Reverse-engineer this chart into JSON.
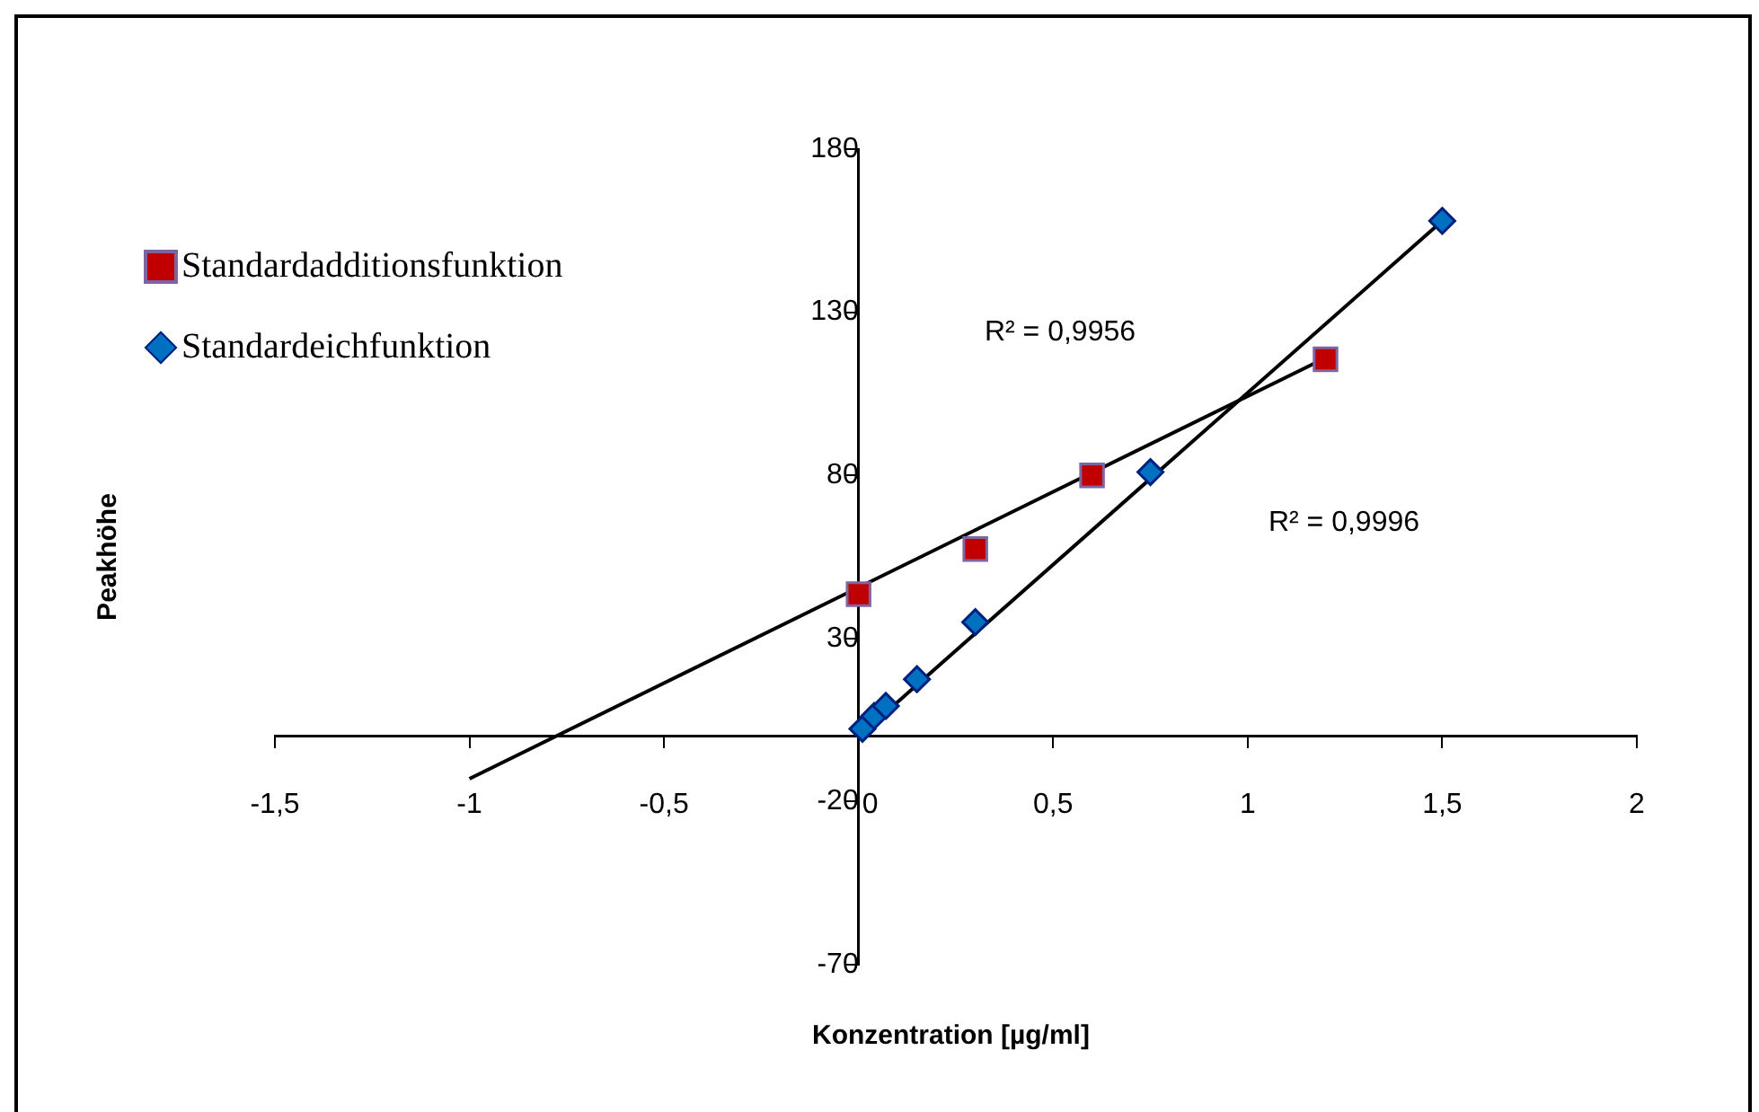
{
  "chart_data": {
    "type": "scatter",
    "xlabel": "Konzentration [µg/ml]",
    "ylabel": "Peakhöhe",
    "xlim": [
      -1.5,
      2
    ],
    "xticks": [
      {
        "value": -1.5,
        "label": "-1,5"
      },
      -1,
      {
        "value": -0.5,
        "label": "-0,5"
      },
      0,
      {
        "value": 0.5,
        "label": "0,5"
      },
      1,
      {
        "value": 1.5,
        "label": "1,5"
      },
      2
    ],
    "ylim": [
      -70,
      180
    ],
    "yticks": [
      -70,
      -20,
      30,
      80,
      130,
      180
    ],
    "grid": false,
    "legend": "top left",
    "series": [
      {
        "name": "Standardadditionsfunktion",
        "color": "#c00000",
        "marker": "square",
        "x": [
          0,
          0.3,
          0.6,
          1.2
        ],
        "values": [
          43.6,
          57.4,
          80,
          115.6
        ]
      },
      {
        "name": "Standardeichfunktion",
        "color": "#0070c0",
        "marker": "diamond",
        "x": [
          0.01,
          0.04,
          0.07,
          0.15,
          0.3,
          0.75,
          1.5
        ],
        "values": [
          2.3,
          6.2,
          9.3,
          17.5,
          35,
          81,
          158
        ]
      },
      {
        "type": "line",
        "color": "#000000",
        "marker": "none",
        "x": [
          -1,
          1.2
        ],
        "values": [
          -13,
          116
        ]
      },
      {
        "type": "line",
        "color": "#000000",
        "marker": "none",
        "x": [
          0.01,
          1.5
        ],
        "values": [
          1,
          158
        ]
      }
    ],
    "annotations": [
      "R² = 0,9956",
      "R² = 0,9996"
    ]
  }
}
